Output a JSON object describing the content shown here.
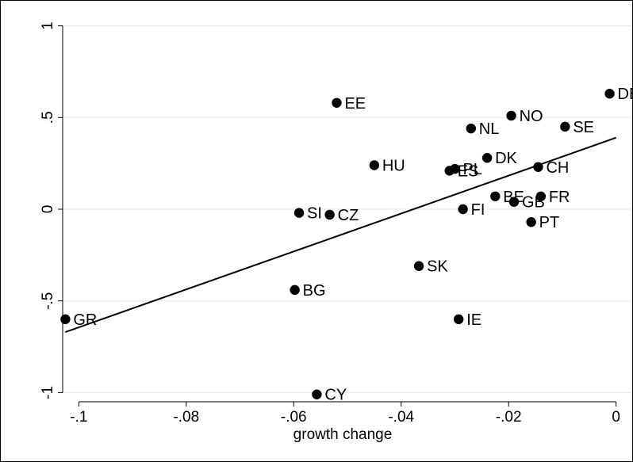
{
  "chart_data": {
    "type": "scatter",
    "title": "",
    "xlabel": "growth change",
    "ylabel": "",
    "xlim": [
      -0.103,
      0.003
    ],
    "ylim": [
      -1.05,
      1.05
    ],
    "x_ticks": [
      -0.1,
      -0.08,
      -0.06,
      -0.04,
      -0.02,
      0
    ],
    "x_tick_labels": [
      "-.1",
      "-.08",
      "-.06",
      "-.04",
      "-.02",
      "0"
    ],
    "y_ticks": [
      -1,
      -0.5,
      0,
      0.5,
      1
    ],
    "y_tick_labels": [
      "-1",
      "-.5",
      "0",
      ".5",
      "1"
    ],
    "grid": true,
    "legend": "none",
    "colors": {
      "marker": "#000000",
      "grid": "#e8ecef",
      "fit_line": "#000000"
    },
    "points": [
      {
        "label": "DE",
        "x": -0.0012,
        "y": 0.63
      },
      {
        "label": "EE",
        "x": -0.052,
        "y": 0.58
      },
      {
        "label": "NO",
        "x": -0.0195,
        "y": 0.51
      },
      {
        "label": "SE",
        "x": -0.0095,
        "y": 0.45
      },
      {
        "label": "NL",
        "x": -0.027,
        "y": 0.44
      },
      {
        "label": "DK",
        "x": -0.024,
        "y": 0.28
      },
      {
        "label": "HU",
        "x": -0.045,
        "y": 0.24
      },
      {
        "label": "CH",
        "x": -0.0145,
        "y": 0.23
      },
      {
        "label": "ES",
        "x": -0.031,
        "y": 0.21
      },
      {
        "label": "PL",
        "x": -0.03,
        "y": 0.22
      },
      {
        "label": "BE",
        "x": -0.0225,
        "y": 0.07
      },
      {
        "label": "FR",
        "x": -0.014,
        "y": 0.07
      },
      {
        "label": "GB",
        "x": -0.019,
        "y": 0.04
      },
      {
        "label": "FI",
        "x": -0.0285,
        "y": 0.0
      },
      {
        "label": "SI",
        "x": -0.059,
        "y": -0.02
      },
      {
        "label": "CZ",
        "x": -0.0533,
        "y": -0.03
      },
      {
        "label": "PT",
        "x": -0.0158,
        "y": -0.07
      },
      {
        "label": "SK",
        "x": -0.0367,
        "y": -0.31
      },
      {
        "label": "BG",
        "x": -0.0598,
        "y": -0.44
      },
      {
        "label": "IE",
        "x": -0.0293,
        "y": -0.6
      },
      {
        "label": "GR",
        "x": -0.1025,
        "y": -0.6
      },
      {
        "label": "CY",
        "x": -0.0557,
        "y": -1.01
      }
    ],
    "fit_line": {
      "x": [
        -0.1025,
        0
      ],
      "y": [
        -0.67,
        0.39
      ]
    }
  }
}
